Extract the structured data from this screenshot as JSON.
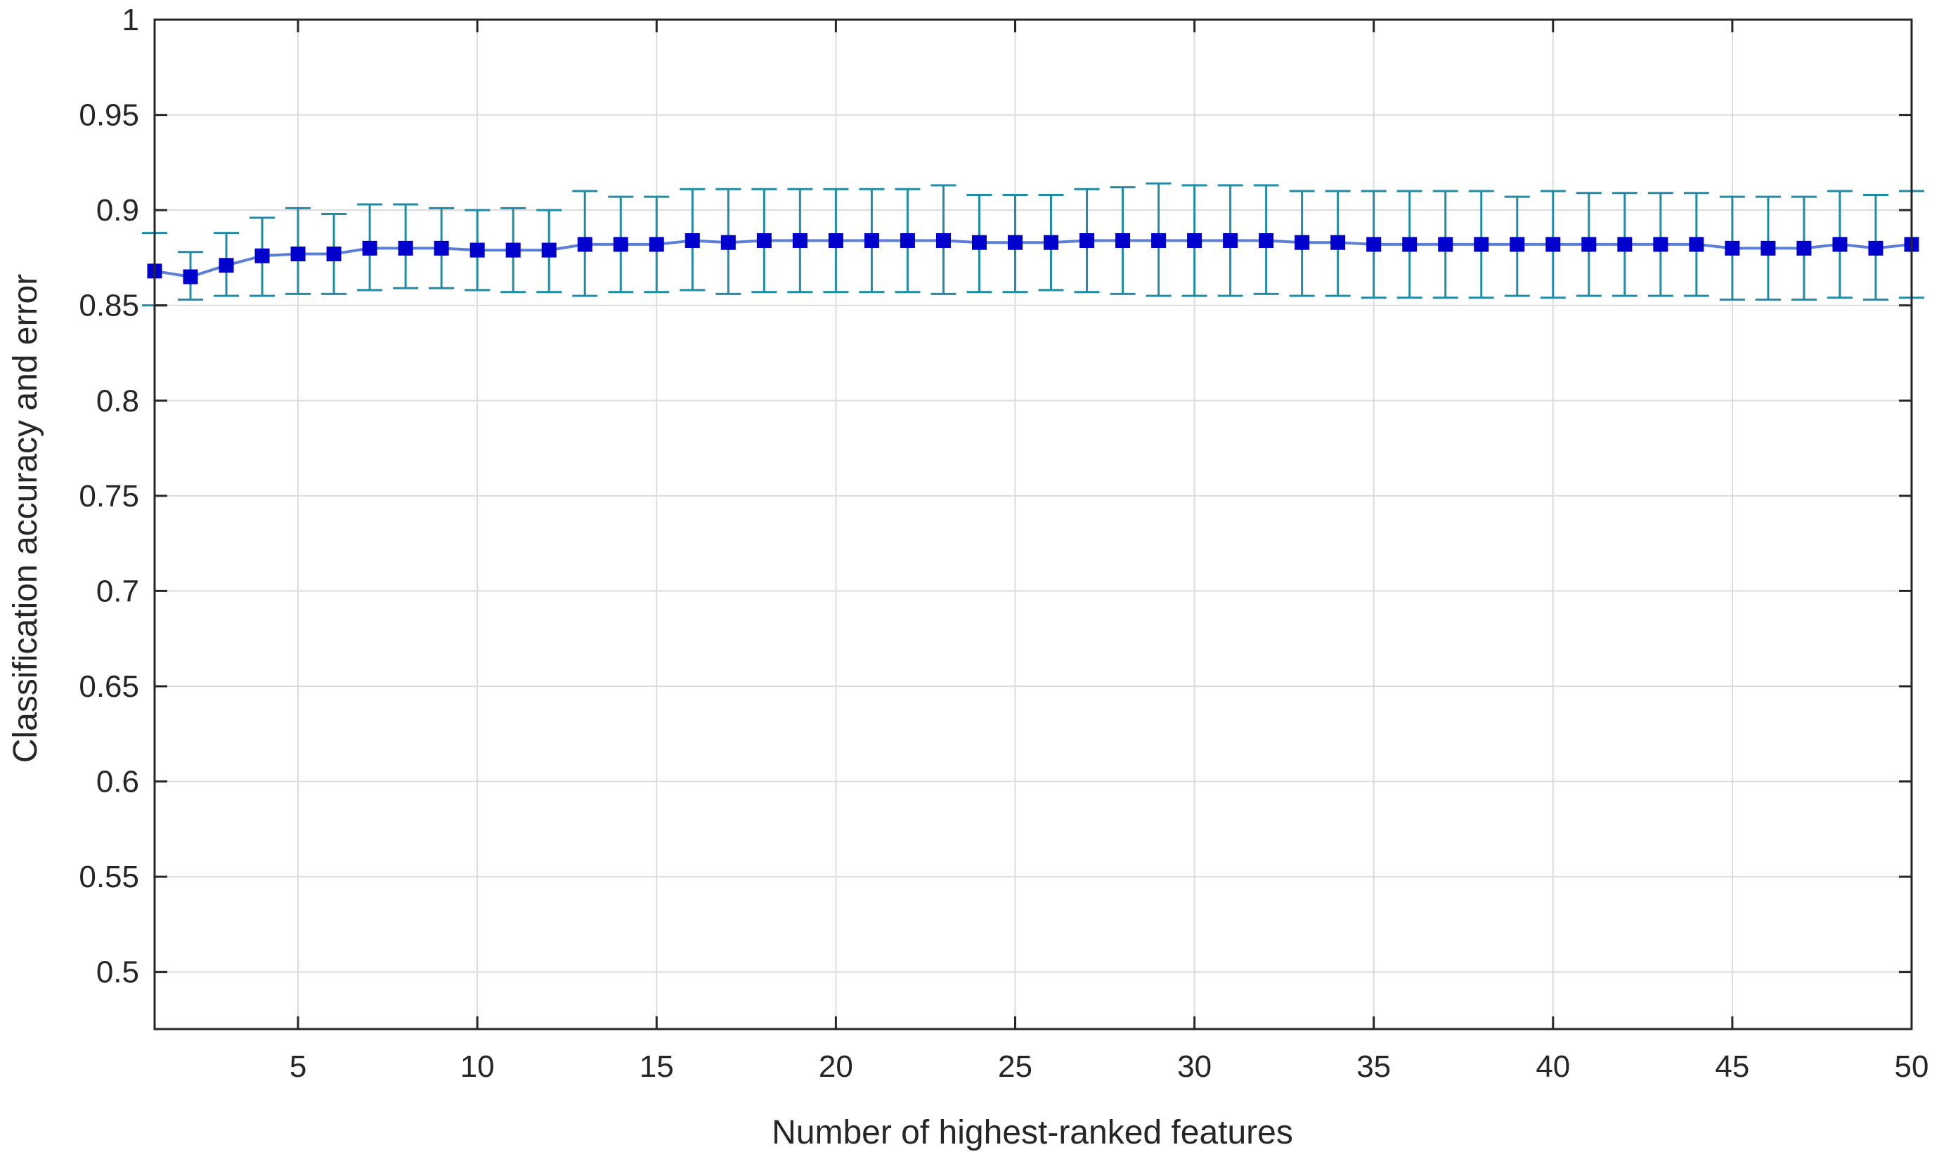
{
  "chart_data": {
    "type": "line",
    "title": "",
    "xlabel": "Number of highest-ranked features",
    "ylabel": "Classification accuracy and error",
    "xlim": [
      1,
      50
    ],
    "ylim": [
      0.47,
      1.0
    ],
    "xticks": [
      5,
      10,
      15,
      20,
      25,
      30,
      35,
      40,
      45,
      50
    ],
    "xtick_labels": [
      "5",
      "10",
      "15",
      "20",
      "25",
      "30",
      "35",
      "40",
      "45",
      "50"
    ],
    "yticks": [
      0.5,
      0.55,
      0.6,
      0.65,
      0.7,
      0.75,
      0.8,
      0.85,
      0.9,
      0.95,
      1.0
    ],
    "ytick_labels": [
      "0.5",
      "0.55",
      "0.6",
      "0.65",
      "0.7",
      "0.75",
      "0.8",
      "0.85",
      "0.9",
      "0.95",
      "1"
    ],
    "grid": true,
    "legend": null,
    "series": [
      {
        "line_color": "#5b7fd6",
        "marker_color": "#0000cc",
        "errorbar_color": "#1f8ca6",
        "marker": "square",
        "x": [
          1,
          2,
          3,
          4,
          5,
          6,
          7,
          8,
          9,
          10,
          11,
          12,
          13,
          14,
          15,
          16,
          17,
          18,
          19,
          20,
          21,
          22,
          23,
          24,
          25,
          26,
          27,
          28,
          29,
          30,
          31,
          32,
          33,
          34,
          35,
          36,
          37,
          38,
          39,
          40,
          41,
          42,
          43,
          44,
          45,
          46,
          47,
          48,
          49,
          50
        ],
        "y": [
          0.868,
          0.865,
          0.871,
          0.876,
          0.877,
          0.877,
          0.88,
          0.88,
          0.88,
          0.879,
          0.879,
          0.879,
          0.882,
          0.882,
          0.882,
          0.884,
          0.883,
          0.884,
          0.884,
          0.884,
          0.884,
          0.884,
          0.884,
          0.883,
          0.883,
          0.883,
          0.884,
          0.884,
          0.884,
          0.884,
          0.884,
          0.884,
          0.883,
          0.883,
          0.882,
          0.882,
          0.882,
          0.882,
          0.882,
          0.882,
          0.882,
          0.882,
          0.882,
          0.882,
          0.88,
          0.88,
          0.88,
          0.882,
          0.88,
          0.882
        ],
        "upper": [
          0.888,
          0.878,
          0.888,
          0.896,
          0.901,
          0.898,
          0.903,
          0.903,
          0.901,
          0.9,
          0.901,
          0.9,
          0.91,
          0.907,
          0.907,
          0.911,
          0.911,
          0.911,
          0.911,
          0.911,
          0.911,
          0.911,
          0.913,
          0.908,
          0.908,
          0.908,
          0.911,
          0.912,
          0.914,
          0.913,
          0.913,
          0.913,
          0.91,
          0.91,
          0.91,
          0.91,
          0.91,
          0.91,
          0.907,
          0.91,
          0.909,
          0.909,
          0.909,
          0.909,
          0.907,
          0.907,
          0.907,
          0.91,
          0.908,
          0.91
        ],
        "lower": [
          0.85,
          0.853,
          0.855,
          0.855,
          0.856,
          0.856,
          0.858,
          0.859,
          0.859,
          0.858,
          0.857,
          0.857,
          0.855,
          0.857,
          0.857,
          0.858,
          0.856,
          0.857,
          0.857,
          0.857,
          0.857,
          0.857,
          0.856,
          0.857,
          0.857,
          0.858,
          0.857,
          0.856,
          0.855,
          0.855,
          0.855,
          0.856,
          0.855,
          0.855,
          0.854,
          0.854,
          0.854,
          0.854,
          0.855,
          0.854,
          0.855,
          0.855,
          0.855,
          0.855,
          0.853,
          0.853,
          0.853,
          0.854,
          0.853,
          0.854
        ]
      }
    ]
  }
}
